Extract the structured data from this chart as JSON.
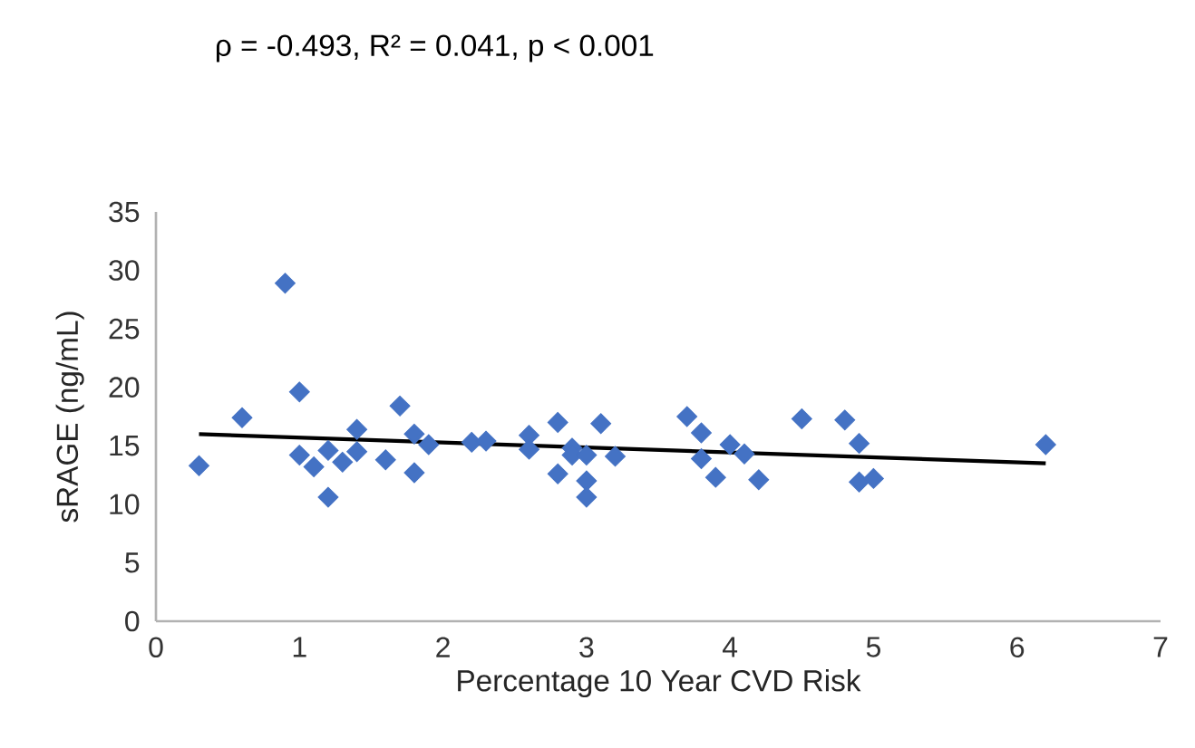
{
  "chart_data": {
    "type": "scatter",
    "title": "ρ = -0.493, R² = 0.041, p < 0.001",
    "xlabel": "Percentage 10 Year CVD Risk",
    "ylabel": "sRAGE (ng/mL)",
    "xlim": [
      0,
      7
    ],
    "ylim": [
      0,
      35
    ],
    "xticks": [
      0,
      1,
      2,
      3,
      4,
      5,
      6,
      7
    ],
    "yticks": [
      0,
      5,
      10,
      15,
      20,
      25,
      30,
      35
    ],
    "marker": "diamond",
    "series": [
      {
        "color": "#4472c4",
        "x": [
          0.3,
          0.6,
          0.9,
          1.0,
          1.0,
          1.1,
          1.2,
          1.2,
          1.3,
          1.4,
          1.4,
          1.6,
          1.7,
          1.8,
          1.8,
          1.9,
          2.2,
          2.3,
          2.6,
          2.6,
          2.8,
          2.8,
          2.9,
          2.9,
          3.0,
          3.0,
          3.0,
          3.1,
          3.2,
          3.7,
          3.8,
          3.8,
          3.9,
          4.0,
          4.1,
          4.2,
          4.5,
          4.8,
          4.9,
          4.9,
          5.0,
          6.2
        ],
        "values": [
          13.3,
          17.4,
          28.9,
          19.6,
          14.2,
          13.2,
          14.6,
          10.6,
          13.6,
          16.4,
          14.5,
          13.8,
          18.4,
          16.0,
          12.7,
          15.1,
          15.3,
          15.4,
          15.9,
          14.7,
          17.0,
          12.6,
          14.8,
          14.2,
          14.2,
          12.0,
          10.6,
          16.9,
          14.1,
          17.5,
          16.1,
          13.9,
          12.3,
          15.1,
          14.3,
          12.1,
          17.3,
          17.2,
          15.2,
          11.9,
          12.2,
          15.1
        ]
      },
      {
        "type": "line",
        "color": "#000000",
        "marker": "none",
        "x": [
          0.3,
          6.2
        ],
        "values": [
          16.0,
          13.5
        ]
      }
    ]
  }
}
